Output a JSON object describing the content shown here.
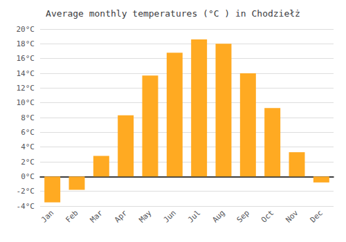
{
  "chart_data": {
    "type": "bar",
    "title": "Average monthly temperatures (°C ) in Chodziełż",
    "categories": [
      "Jan",
      "Feb",
      "Mar",
      "Apr",
      "May",
      "Jun",
      "Jul",
      "Aug",
      "Sep",
      "Oct",
      "Nov",
      "Dec"
    ],
    "values": [
      -3.5,
      -1.8,
      2.8,
      8.3,
      13.7,
      16.8,
      18.6,
      18.0,
      14.0,
      9.3,
      3.3,
      -0.8
    ],
    "color": "#FFAA22",
    "ylim": [
      -4,
      20
    ],
    "yticks": [
      {
        "value": -4,
        "label": "-4°C"
      },
      {
        "value": -2,
        "label": "-2°C"
      },
      {
        "value": 0,
        "label": "0°C"
      },
      {
        "value": 2,
        "label": "2°C"
      },
      {
        "value": 4,
        "label": "4°C"
      },
      {
        "value": 6,
        "label": "6°C"
      },
      {
        "value": 8,
        "label": "8°C"
      },
      {
        "value": 10,
        "label": "10°C"
      },
      {
        "value": 12,
        "label": "12°C"
      },
      {
        "value": 14,
        "label": "14°C"
      },
      {
        "value": 16,
        "label": "16°C"
      },
      {
        "value": 18,
        "label": "18°C"
      },
      {
        "value": 20,
        "label": "20°C"
      }
    ],
    "grid": true
  }
}
